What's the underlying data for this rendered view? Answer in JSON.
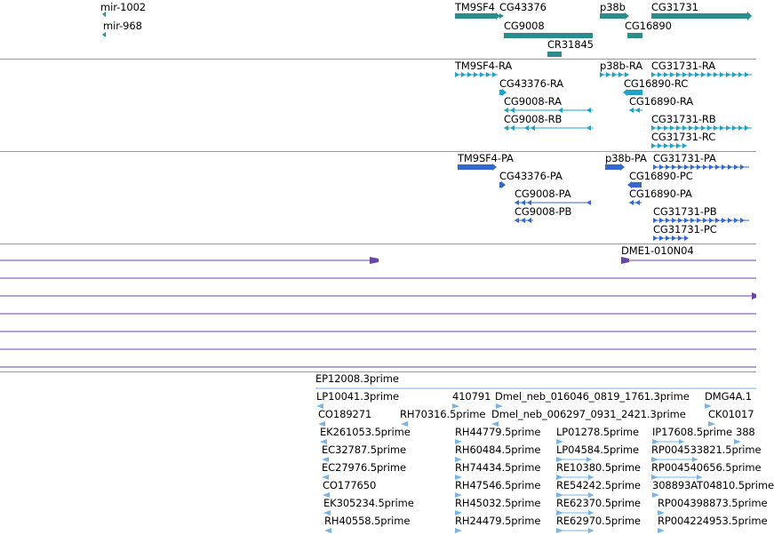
{
  "colors": {
    "gene": "#2a8c8c",
    "transcript": "#1fa2c8",
    "protein": "#3468d0",
    "clone": "#6a46a8",
    "est": "#7ab4e2",
    "divider": "#9a9a9a"
  },
  "tracks": {
    "genes": {
      "labels": [
        "mir-1002",
        "mir-968",
        "TM9SF4",
        "CG43376",
        "CG9008",
        "CR31845",
        "p38b",
        "CG16890",
        "CG31731"
      ]
    },
    "transcripts": {
      "labels": [
        "TM9SF4-RA",
        "CG43376-RA",
        "CG9008-RA",
        "CG9008-RB",
        "p38b-RA",
        "CG16890-RC",
        "CG16890-RA",
        "CG31731-RA",
        "CG31731-RB",
        "CG31731-RC"
      ]
    },
    "proteins": {
      "labels": [
        "TM9SF4-PA",
        "CG43376-PA",
        "CG9008-PA",
        "CG9008-PB",
        "p38b-PA",
        "CG31731-PA",
        "CG16890-PC",
        "CG16890-PA",
        "CG31731-PB",
        "CG31731-PC"
      ]
    },
    "clones": {
      "labels": [
        "DME1-010N04"
      ]
    },
    "ests": {
      "labels": [
        "EP12008.3prime",
        "LP10041.3prime",
        "410791",
        "Dmel_neb_016046_0819_1761.3prime",
        "DMG4A.1",
        "CO189271",
        "RH70316.5prime",
        "Dmel_neb_006297_0931_2421.3prime",
        "CK01017",
        "EK261053.5prime",
        "RH44779.5prime",
        "LP01278.5prime",
        "IP17608.5prime",
        "388",
        "EC32787.5prime",
        "RH60484.5prime",
        "LP04584.5prime",
        "RP004533821.5prime",
        "EC27976.5prime",
        "RH74434.5prime",
        "RE10380.5prime",
        "RP004540656.5prime",
        "CO177650",
        "RH47546.5prime",
        "RE54242.5prime",
        "308893AT04810.5prime",
        "EK305234.5prime",
        "RH45032.5prime",
        "RE62370.5prime",
        "RP004398873.5prime",
        "RH40558.5prime",
        "RH24479.5prime",
        "RE62970.5prime",
        "RP004224953.5prime"
      ]
    }
  }
}
